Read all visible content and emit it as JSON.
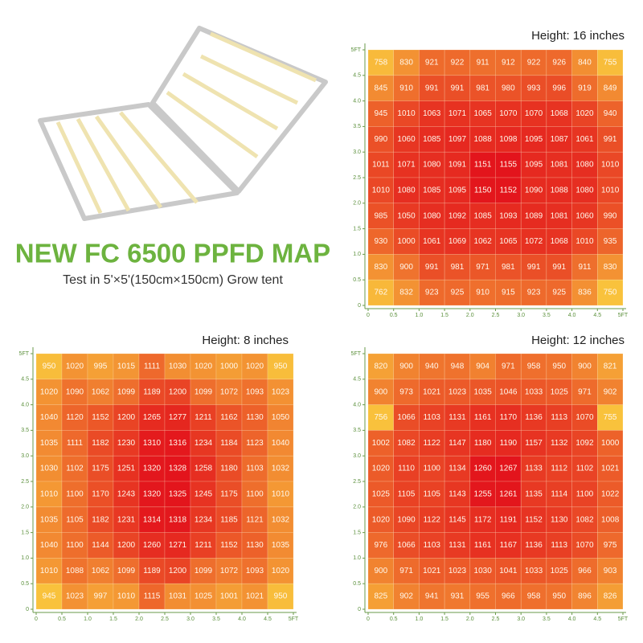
{
  "header": {
    "title": "NEW FC 6500 PPFD MAP",
    "subtitle": "Test in 5'×5'(150cm×150cm) Grow tent"
  },
  "chart_data": [
    {
      "type": "heatmap",
      "title": "Height: 16 inches",
      "colors": [
        "#f9c23c",
        "#e3141c"
      ],
      "xlim": [
        0,
        5
      ],
      "ylim": [
        0,
        5
      ],
      "xticks": [
        0,
        0.5,
        {
          "value": 1,
          "label": "1.0"
        },
        1.5,
        {
          "value": 2,
          "label": "2.0"
        },
        2.5,
        {
          "value": 3,
          "label": "3.0"
        },
        3.5,
        {
          "value": 4,
          "label": "4.0"
        },
        4.5,
        {
          "value": 5,
          "label": "5FT"
        }
      ],
      "yticks": [
        0,
        0.5,
        {
          "value": 1,
          "label": "1.0"
        },
        1.5,
        {
          "value": 2,
          "label": "2.0"
        },
        2.5,
        {
          "value": 3,
          "label": "3.0"
        },
        3.5,
        {
          "value": 4,
          "label": "4.0"
        },
        4.5,
        {
          "value": 5,
          "label": "5FT"
        }
      ],
      "values": [
        [
          758,
          830,
          921,
          922,
          911,
          912,
          922,
          926,
          840,
          755
        ],
        [
          845,
          910,
          991,
          991,
          981,
          980,
          993,
          996,
          919,
          849
        ],
        [
          945,
          1010,
          1063,
          1071,
          1065,
          1070,
          1070,
          1068,
          1020,
          940
        ],
        [
          990,
          1060,
          1085,
          1097,
          1088,
          1098,
          1095,
          1087,
          1061,
          991
        ],
        [
          1011,
          1071,
          1080,
          1091,
          1151,
          1155,
          1095,
          1081,
          1080,
          1010
        ],
        [
          1010,
          1080,
          1085,
          1095,
          1150,
          1152,
          1090,
          1088,
          1080,
          1010
        ],
        [
          985,
          1050,
          1080,
          1092,
          1085,
          1093,
          1089,
          1081,
          1060,
          990
        ],
        [
          930,
          1000,
          1061,
          1069,
          1062,
          1065,
          1072,
          1068,
          1010,
          935
        ],
        [
          830,
          900,
          991,
          981,
          971,
          981,
          991,
          991,
          911,
          830
        ],
        [
          762,
          832,
          923,
          925,
          910,
          915,
          923,
          925,
          836,
          750
        ]
      ]
    },
    {
      "type": "heatmap",
      "title": "Height: 8 inches",
      "colors": [
        "#f9c23c",
        "#e3141c"
      ],
      "xlim": [
        0,
        5
      ],
      "ylim": [
        0,
        5
      ],
      "xticks": [
        0,
        0.5,
        {
          "value": 1,
          "label": "1.0"
        },
        1.5,
        {
          "value": 2,
          "label": "2.0"
        },
        2.5,
        {
          "value": 3,
          "label": "3.0"
        },
        3.5,
        {
          "value": 4,
          "label": "4.0"
        },
        4.5,
        {
          "value": 5,
          "label": "5FT"
        }
      ],
      "yticks": [
        0,
        0.5,
        {
          "value": 1,
          "label": "1.0"
        },
        1.5,
        {
          "value": 2,
          "label": "2.0"
        },
        2.5,
        {
          "value": 3,
          "label": "3.0"
        },
        3.5,
        {
          "value": 4,
          "label": "4.0"
        },
        4.5,
        {
          "value": 5,
          "label": "5FT"
        }
      ],
      "values": [
        [
          950,
          1020,
          995,
          1015,
          1111,
          1030,
          1020,
          1000,
          1020,
          950
        ],
        [
          1020,
          1090,
          1062,
          1099,
          1189,
          1200,
          1099,
          1072,
          1093,
          1023
        ],
        [
          1040,
          1120,
          1152,
          1200,
          1265,
          1277,
          1211,
          1162,
          1130,
          1050
        ],
        [
          1035,
          1111,
          1182,
          1230,
          1310,
          1316,
          1234,
          1184,
          1123,
          1040
        ],
        [
          1030,
          1102,
          1175,
          1251,
          1320,
          1328,
          1258,
          1180,
          1103,
          1032
        ],
        [
          1010,
          1100,
          1170,
          1243,
          1320,
          1325,
          1245,
          1175,
          1100,
          1010
        ],
        [
          1035,
          1105,
          1182,
          1231,
          1314,
          1318,
          1234,
          1185,
          1121,
          1032
        ],
        [
          1040,
          1100,
          1144,
          1200,
          1260,
          1271,
          1211,
          1152,
          1130,
          1035
        ],
        [
          1010,
          1088,
          1062,
          1099,
          1189,
          1200,
          1099,
          1072,
          1093,
          1020
        ],
        [
          945,
          1023,
          997,
          1010,
          1115,
          1031,
          1025,
          1001,
          1021,
          950
        ]
      ]
    },
    {
      "type": "heatmap",
      "title": "Height: 12 inches",
      "colors": [
        "#f9c23c",
        "#e3141c"
      ],
      "xlim": [
        0,
        5
      ],
      "ylim": [
        0,
        5
      ],
      "xticks": [
        0,
        0.5,
        {
          "value": 1,
          "label": "1.0"
        },
        1.5,
        {
          "value": 2,
          "label": "2.0"
        },
        2.5,
        {
          "value": 3,
          "label": "3.0"
        },
        3.5,
        {
          "value": 4,
          "label": "4.0"
        },
        4.5,
        {
          "value": 5,
          "label": "5FT"
        }
      ],
      "yticks": [
        0,
        0.5,
        {
          "value": 1,
          "label": "1.0"
        },
        1.5,
        {
          "value": 2,
          "label": "2.0"
        },
        2.5,
        {
          "value": 3,
          "label": "3.0"
        },
        3.5,
        {
          "value": 4,
          "label": "4.0"
        },
        4.5,
        {
          "value": 5,
          "label": "5FT"
        }
      ],
      "values": [
        [
          820,
          900,
          940,
          948,
          904,
          971,
          958,
          950,
          900,
          821
        ],
        [
          900,
          973,
          1021,
          1023,
          1035,
          1046,
          1033,
          1025,
          971,
          902
        ],
        [
          756,
          1066,
          1103,
          1131,
          1161,
          1170,
          1136,
          1113,
          1070,
          755
        ],
        [
          1002,
          1082,
          1122,
          1147,
          1180,
          1190,
          1157,
          1132,
          1092,
          1000
        ],
        [
          1020,
          1110,
          1100,
          1134,
          1260,
          1267,
          1133,
          1112,
          1102,
          1021
        ],
        [
          1025,
          1105,
          1105,
          1143,
          1255,
          1261,
          1135,
          1114,
          1100,
          1022
        ],
        [
          1020,
          1090,
          1122,
          1145,
          1172,
          1191,
          1152,
          1130,
          1082,
          1008
        ],
        [
          976,
          1066,
          1103,
          1131,
          1161,
          1167,
          1136,
          1113,
          1070,
          975
        ],
        [
          900,
          971,
          1021,
          1023,
          1030,
          1041,
          1033,
          1025,
          966,
          903
        ],
        [
          825,
          902,
          941,
          931,
          955,
          966,
          958,
          950,
          896,
          826
        ]
      ]
    }
  ]
}
